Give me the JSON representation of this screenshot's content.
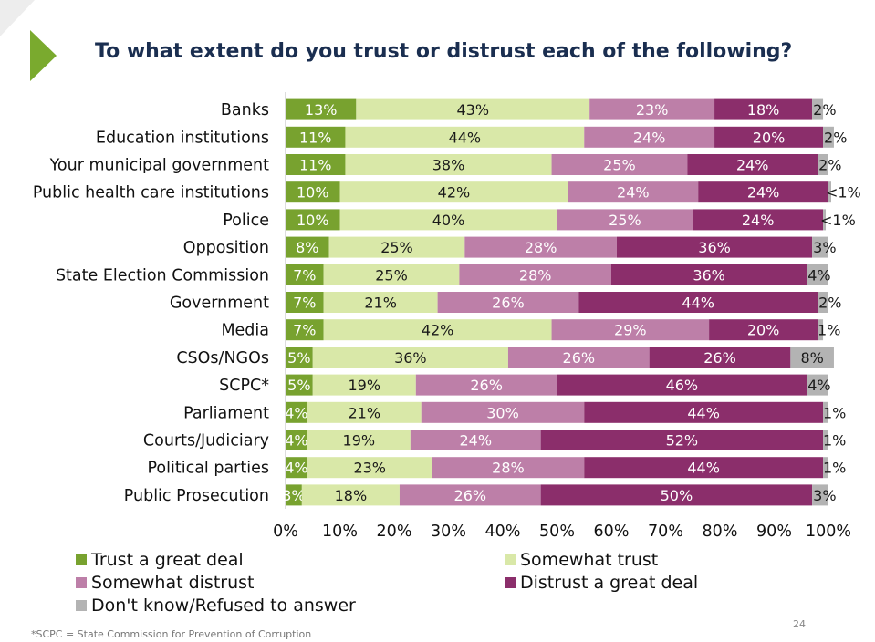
{
  "title": "To what extent do you trust or distrust each of the following?",
  "footnote": "*SCPC = State Commission for Prevention of Corruption",
  "page_number": "24",
  "colors": {
    "accent_triangle": "#7aaa2e",
    "title": "#1a2e50"
  },
  "chart_data": {
    "type": "bar",
    "orientation": "horizontal",
    "stacked": true,
    "xlim": [
      0,
      100
    ],
    "x_ticks": [
      "0%",
      "10%",
      "20%",
      "30%",
      "40%",
      "50%",
      "60%",
      "70%",
      "80%",
      "90%",
      "100%"
    ],
    "legend_position": "bottom",
    "categories": [
      "Banks",
      "Education institutions",
      "Your municipal government",
      "Public health care institutions",
      "Police",
      "Opposition",
      "State Election Commission",
      "Government",
      "Media",
      "CSOs/NGOs",
      "SCPC*",
      "Parliament",
      "Courts/Judiciary",
      "Political parties",
      "Public Prosecution"
    ],
    "series": [
      {
        "name": "Trust a great deal",
        "color": "#78a22f",
        "label_color": "#ffffff",
        "values": [
          13,
          11,
          11,
          10,
          10,
          8,
          7,
          7,
          7,
          5,
          5,
          4,
          4,
          4,
          3
        ],
        "labels": [
          "13%",
          "11%",
          "11%",
          "10%",
          "10%",
          "8%",
          "7%",
          "7%",
          "7%",
          "5%",
          "5%",
          "4%",
          "4%",
          "4%",
          "3%"
        ]
      },
      {
        "name": "Somewhat trust",
        "color": "#d9e8a8",
        "label_color": "#1a1a1a",
        "values": [
          43,
          44,
          38,
          42,
          40,
          25,
          25,
          21,
          42,
          36,
          19,
          21,
          19,
          23,
          18
        ],
        "labels": [
          "43%",
          "44%",
          "38%",
          "42%",
          "40%",
          "25%",
          "25%",
          "21%",
          "42%",
          "36%",
          "19%",
          "21%",
          "19%",
          "23%",
          "18%"
        ]
      },
      {
        "name": "Somewhat distrust",
        "color": "#bd7fa8",
        "label_color": "#ffffff",
        "values": [
          23,
          24,
          25,
          24,
          25,
          28,
          28,
          26,
          29,
          26,
          26,
          30,
          24,
          28,
          26
        ],
        "labels": [
          "23%",
          "24%",
          "25%",
          "24%",
          "25%",
          "28%",
          "28%",
          "26%",
          "29%",
          "26%",
          "26%",
          "30%",
          "24%",
          "28%",
          "26%"
        ]
      },
      {
        "name": "Distrust a great deal",
        "color": "#8b2e6b",
        "label_color": "#ffffff",
        "values": [
          18,
          20,
          24,
          24,
          24,
          36,
          36,
          44,
          20,
          26,
          46,
          44,
          52,
          44,
          50
        ],
        "labels": [
          "18%",
          "20%",
          "24%",
          "24%",
          "24%",
          "36%",
          "36%",
          "44%",
          "20%",
          "26%",
          "46%",
          "44%",
          "52%",
          "44%",
          "50%"
        ]
      },
      {
        "name": "Don't know/Refused to answer",
        "color": "#b3b3b3",
        "label_color": "#1a1a1a",
        "values": [
          2,
          2,
          2,
          0.5,
          0.5,
          3,
          4,
          2,
          1,
          8,
          4,
          1,
          1,
          1,
          3
        ],
        "labels": [
          "2%",
          "2%",
          "2%",
          "<1%",
          "<1%",
          "3%",
          "4%",
          "2%",
          "1%",
          "8%",
          "4%",
          "1%",
          "1%",
          "1%",
          "3%"
        ]
      }
    ]
  }
}
